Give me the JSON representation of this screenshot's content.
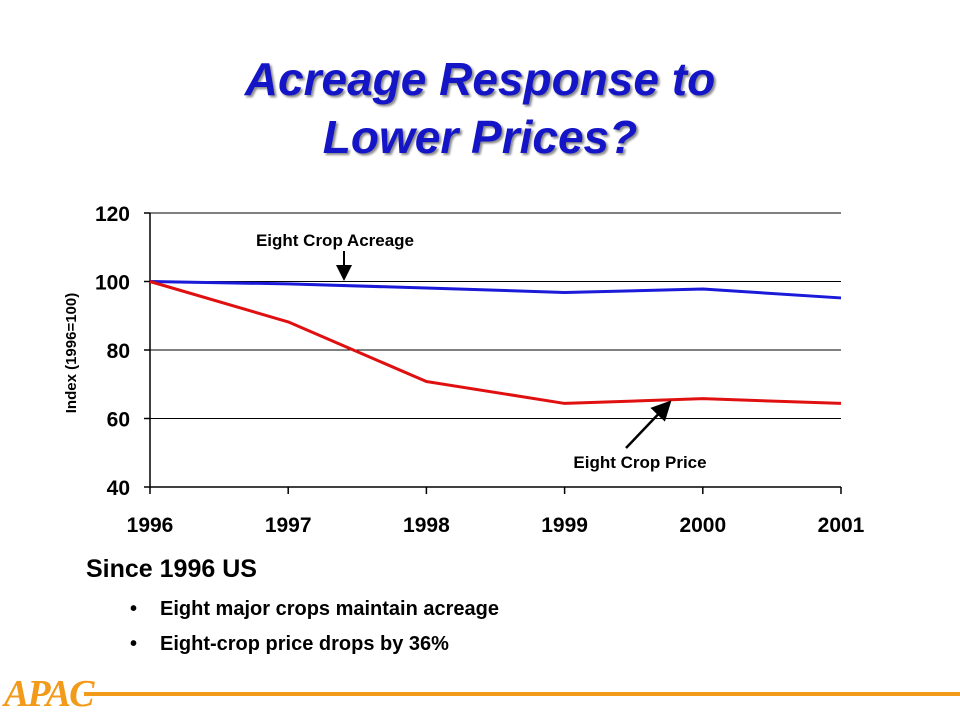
{
  "slide": {
    "title_line1": "Acreage Response to",
    "title_line2": "Lower Prices?",
    "summary_heading": "Since 1996 US",
    "bullets": [
      "Eight major crops maintain acreage",
      "Eight-crop price drops by 36%"
    ],
    "logo_text": "APAC",
    "colors": {
      "title": "#1515c8",
      "accent": "#f29a1a"
    }
  },
  "chart_data": {
    "type": "line",
    "x": [
      "1996",
      "1997",
      "1998",
      "1999",
      "2000",
      "2001"
    ],
    "series": [
      {
        "name": "Eight Crop Acreage",
        "values": [
          100,
          99.3,
          98.1,
          96.8,
          97.8,
          95.2
        ],
        "color": "#1a1ad8"
      },
      {
        "name": "Eight Crop Price",
        "values": [
          100,
          88.2,
          70.8,
          64.4,
          65.8,
          64.4
        ],
        "color": "#e01010"
      }
    ],
    "title": "",
    "xlabel": "",
    "ylabel": "Index (1996=100)",
    "ylim": [
      40,
      120
    ],
    "yticks": [
      40,
      60,
      80,
      100,
      120
    ],
    "grid": true,
    "annotations": [
      {
        "text": "Eight Crop Acreage",
        "series": 0
      },
      {
        "text": "Eight Crop Price",
        "series": 1
      }
    ]
  }
}
